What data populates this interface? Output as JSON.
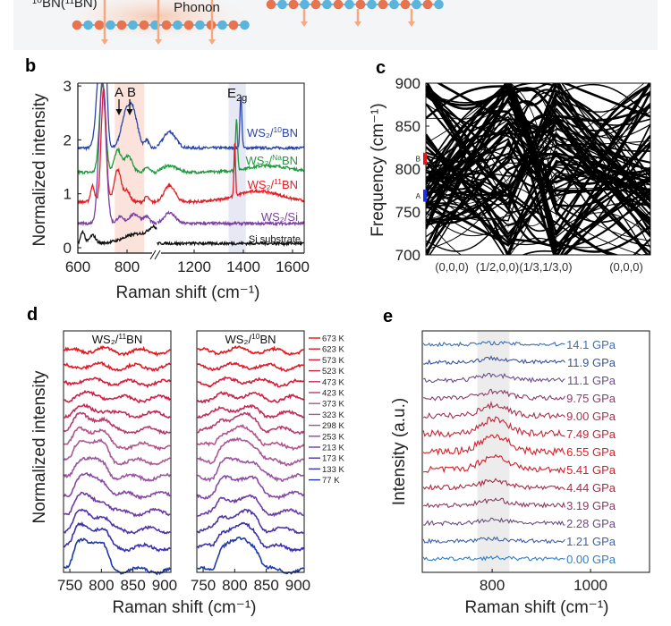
{
  "banner": {
    "isotope_label": "¹⁰BN(¹¹BN)",
    "phonon_label": "Phonon",
    "atom_colors": {
      "boron": "#e8734f",
      "nitrogen": "#5ab4dc"
    }
  },
  "chart_data": [
    {
      "panel": "b",
      "type": "line",
      "xlabel": "Raman shift (cm⁻¹)",
      "ylabel": "Normalized intensity",
      "x_ticks": [
        "600",
        "800",
        "1200",
        "1400",
        "1600"
      ],
      "y_ticks": [
        "0",
        "1",
        "2",
        "3"
      ],
      "xlim": [
        600,
        1650
      ],
      "x_break": [
        920,
        1050
      ],
      "ylim": [
        0,
        3
      ],
      "annotations": {
        "A": "A",
        "B": "B",
        "E2g_base": "E",
        "E2g_sub": "2g"
      },
      "bands": [
        {
          "from": 750,
          "to": 870,
          "color": "#fbe3dc"
        },
        {
          "from": 1340,
          "to": 1410,
          "color": "#e6e8f4"
        }
      ],
      "series": [
        {
          "name": "WS2/10BN",
          "label_main": "WS₂/",
          "label_sup": "10",
          "label_end": "BN",
          "color": "#2b46a8",
          "baseline": 1.85,
          "peaks": [
            [
              690,
              1.6,
              14
            ],
            [
              712,
              1.4,
              8
            ],
            [
              790,
              0.45,
              18
            ],
            [
              822,
              0.7,
              20
            ],
            [
              880,
              0.15,
              8
            ],
            [
              1100,
              0.3,
              25
            ],
            [
              1390,
              0.95,
              4
            ]
          ]
        },
        {
          "name": "WS2/NaBN",
          "label_main": "WS₂/",
          "label_sup": "Na",
          "label_end": "BN",
          "color": "#1f9a3e",
          "baseline": 1.4,
          "peaks": [
            [
              700,
              1.7,
              12
            ],
            [
              762,
              0.4,
              14
            ],
            [
              805,
              0.3,
              16
            ],
            [
              880,
              0.1,
              10
            ],
            [
              1100,
              0.12,
              30
            ],
            [
              1372,
              0.95,
              4
            ],
            [
              1500,
              0.12,
              90
            ]
          ]
        },
        {
          "name": "WS2/11BN",
          "label_main": "WS₂/",
          "label_sup": "11",
          "label_end": "BN",
          "color": "#e31f26",
          "baseline": 0.85,
          "peaks": [
            [
              660,
              0.3,
              8
            ],
            [
              705,
              2.1,
              10
            ],
            [
              762,
              0.6,
              14
            ],
            [
              800,
              0.2,
              12
            ],
            [
              880,
              0.1,
              8
            ],
            [
              1100,
              0.3,
              22
            ],
            [
              1365,
              1.0,
              3
            ],
            [
              1460,
              0.2,
              90
            ]
          ]
        },
        {
          "name": "WS2/Si",
          "label_main": "WS₂/Si",
          "label_sup": "",
          "label_end": "",
          "color": "#7b3fa0",
          "baseline": 0.45,
          "peaks": [
            [
              700,
              2.6,
              14
            ],
            [
              770,
              0.12,
              12
            ],
            [
              830,
              0.17,
              22
            ],
            [
              880,
              0.12,
              12
            ],
            [
              1100,
              0.2,
              22
            ]
          ]
        },
        {
          "name": "Si substrate",
          "label_main": "Si substrate",
          "label_sup": "",
          "label_end": "",
          "color": "#111111",
          "baseline": 0.08,
          "peaks": [
            [
              620,
              0.22,
              8
            ],
            [
              660,
              0.15,
              12
            ],
            [
              850,
              0.18,
              60
            ],
            [
              910,
              0.2,
              20
            ]
          ]
        }
      ]
    },
    {
      "panel": "c",
      "type": "line",
      "ylabel": "Frequency (cm⁻¹)",
      "x_ticks": [
        "(0,0,0)",
        "(1/2,0,0)",
        "(1/3,1/3,0)",
        "(0,0,0)"
      ],
      "y_ticks": [
        "700",
        "750",
        "800",
        "850",
        "900"
      ],
      "ylim": [
        700,
        900
      ],
      "markers": [
        {
          "label": "A",
          "from": 762,
          "to": 776,
          "color": "#1c2fe0"
        },
        {
          "label": "B",
          "from": 805,
          "to": 819,
          "color": "#e8141c"
        }
      ]
    },
    {
      "panel": "d",
      "type": "line",
      "xlabel": "Raman shift (cm⁻¹)",
      "ylabel": "Normalized intensity",
      "x_ticks": [
        "750",
        "800",
        "850",
        "900"
      ],
      "xlim": [
        740,
        910
      ],
      "subplots": [
        {
          "title_main": "WS₂/",
          "title_sup": "11",
          "title_end": "BN",
          "peak": [
            755,
            812
          ]
        },
        {
          "title_main": "WS₂/",
          "title_sup": "10",
          "title_end": "BN",
          "peak": [
            772,
            840
          ]
        }
      ],
      "legend": [
        "673 K",
        "623 K",
        "573 K",
        "523 K",
        "473 K",
        "423 K",
        "373 K",
        "323 K",
        "298 K",
        "253 K",
        "213 K",
        "173 K",
        "133 K",
        "77 K"
      ],
      "legend_colors": [
        "#e8141c",
        "#e01a2a",
        "#d81c38",
        "#cc2146",
        "#c42a56",
        "#bb3a6c",
        "#b45688",
        "#a85a96",
        "#9a55a0",
        "#8648a4",
        "#6c3ca6",
        "#4f34a8",
        "#3a30ae",
        "#1e3aa8"
      ],
      "amplitudes": [
        0.05,
        0.05,
        0.08,
        0.12,
        0.2,
        0.45,
        0.55,
        0.7,
        0.6,
        0.6,
        0.5,
        0.55,
        0.7,
        1.0
      ]
    },
    {
      "panel": "e",
      "type": "line",
      "xlabel": "Raman shift (cm⁻¹)",
      "ylabel": "Intensity (a.u.)",
      "x_ticks": [
        "800",
        "1000"
      ],
      "xlim": [
        658,
        1120
      ],
      "band": {
        "from": 770,
        "to": 835,
        "color": "#ececec"
      },
      "series": [
        {
          "name": "14.1 GPa",
          "color": "#3b6fb5",
          "amp": 0.05
        },
        {
          "name": "11.9 GPa",
          "color": "#3b5599",
          "amp": 0.15
        },
        {
          "name": "11.1 GPa",
          "color": "#6a4f8a",
          "amp": 0.2
        },
        {
          "name": "9.75 GPa",
          "color": "#8a3d6a",
          "amp": 0.25
        },
        {
          "name": "9.00 GPa",
          "color": "#a8324f",
          "amp": 0.4
        },
        {
          "name": "7.49 GPa",
          "color": "#c4253a",
          "amp": 0.55
        },
        {
          "name": "6.55 GPa",
          "color": "#d9202a",
          "amp": 0.6
        },
        {
          "name": "5.41 GPa",
          "color": "#d11e2a",
          "amp": 0.5
        },
        {
          "name": "4.44 GPa",
          "color": "#a82a44",
          "amp": 0.25
        },
        {
          "name": "3.19 GPa",
          "color": "#8a3a62",
          "amp": 0.2
        },
        {
          "name": "2.28 GPa",
          "color": "#6a4c86",
          "amp": 0.12
        },
        {
          "name": "1.21 GPa",
          "color": "#3f62a8",
          "amp": 0.08
        },
        {
          "name": "0.00 GPa",
          "color": "#2f7fc8",
          "amp": 0.04
        }
      ]
    }
  ],
  "panel_labels": [
    "b",
    "c",
    "d",
    "e"
  ]
}
